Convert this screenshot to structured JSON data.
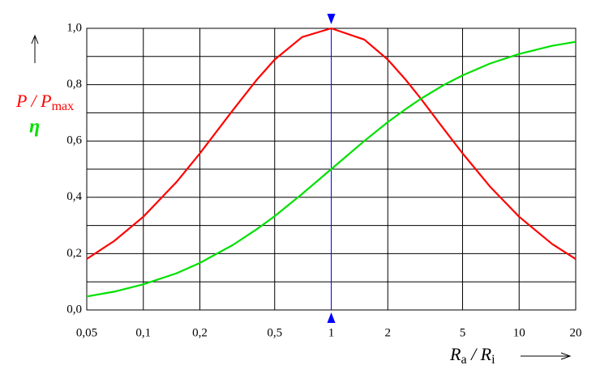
{
  "chart_data": {
    "type": "line",
    "x_scale": "log",
    "xlim": [
      0.05,
      20
    ],
    "xticks": [
      {
        "value": 0.05,
        "label": "0,05"
      },
      {
        "value": 0.1,
        "label": "0,1"
      },
      {
        "value": 0.2,
        "label": "0,2"
      },
      {
        "value": 0.5,
        "label": "0,5"
      },
      1,
      2,
      5,
      10,
      20
    ],
    "ylim": [
      0,
      1
    ],
    "yticks": [
      {
        "value": 0,
        "label": "0,0"
      },
      {
        "value": 0.2,
        "label": "0,2"
      },
      {
        "value": 0.4,
        "label": "0,4"
      },
      {
        "value": 0.6,
        "label": "0,6"
      },
      {
        "value": 0.8,
        "label": "0,8"
      },
      {
        "value": 1,
        "label": "1,0"
      }
    ],
    "y_minor_grid": [
      0.1,
      0.3,
      0.5,
      0.7,
      0.9
    ],
    "grid": true,
    "marker_x": 1,
    "marker_color": "#0000ff",
    "x_label": [
      {
        "text": "R",
        "sub": "a"
      },
      {
        "text": " / R",
        "sub": "i"
      }
    ],
    "x": [
      0.05,
      0.07,
      0.1,
      0.15,
      0.2,
      0.3,
      0.4,
      0.5,
      0.7,
      1,
      1.5,
      2,
      2.5,
      3,
      4,
      5,
      7,
      10,
      15,
      20
    ],
    "series": [
      {
        "name": "P / P",
        "name_sub": "max",
        "color": "#ff0000",
        "values": [
          0.181,
          0.245,
          0.331,
          0.454,
          0.556,
          0.71,
          0.816,
          0.889,
          0.969,
          1,
          0.96,
          0.889,
          0.816,
          0.75,
          0.64,
          0.556,
          0.438,
          0.331,
          0.234,
          0.181
        ]
      },
      {
        "name": "η",
        "color": "#00e000",
        "values": [
          0.048,
          0.065,
          0.091,
          0.13,
          0.167,
          0.231,
          0.286,
          0.333,
          0.412,
          0.5,
          0.6,
          0.667,
          0.714,
          0.75,
          0.8,
          0.833,
          0.875,
          0.909,
          0.938,
          0.952
        ]
      }
    ]
  }
}
